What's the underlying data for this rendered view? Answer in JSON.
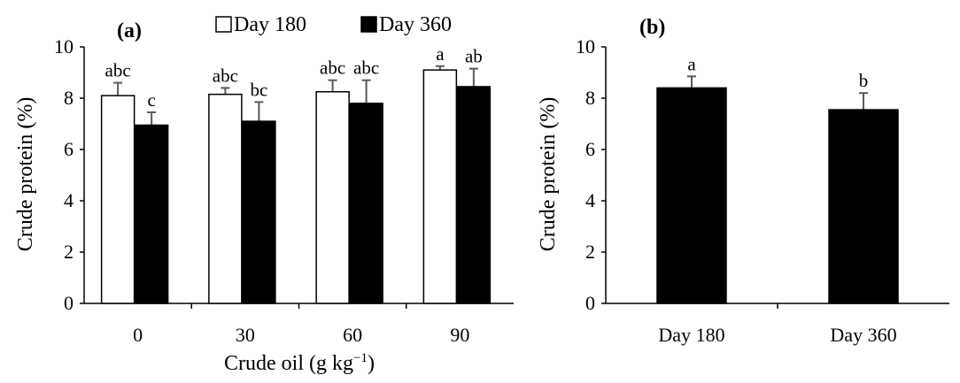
{
  "chart_data": [
    {
      "type": "bar",
      "panel_label": "(a)",
      "categories": [
        "0",
        "30",
        "60",
        "90"
      ],
      "series": [
        {
          "name": "Day 180",
          "color": "#ffffff",
          "values": [
            8.1,
            8.15,
            8.25,
            9.1
          ],
          "errors": [
            0.5,
            0.25,
            0.45,
            0.15
          ],
          "letters": [
            "abc",
            "abc",
            "abc",
            "a"
          ]
        },
        {
          "name": "Day 360",
          "color": "#000000",
          "values": [
            6.95,
            7.1,
            7.8,
            8.45
          ],
          "errors": [
            0.5,
            0.75,
            0.9,
            0.7
          ],
          "letters": [
            "c",
            "bc",
            "abc",
            "ab"
          ]
        }
      ],
      "legend": [
        "Day 180",
        "Day 360"
      ],
      "xlabel": "Crude oil (g kg",
      "xlabel_superscript": "−1",
      "xlabel_suffix": ")",
      "ylabel": "Crude protein (%)",
      "ylim": [
        0,
        10
      ],
      "yticks": [
        "0",
        "2",
        "4",
        "6",
        "8",
        "10"
      ]
    },
    {
      "type": "bar",
      "panel_label": "(b)",
      "categories": [
        "Day 180",
        "Day 360"
      ],
      "values": [
        8.4,
        7.55
      ],
      "errors": [
        0.45,
        0.65
      ],
      "letters": [
        "a",
        "b"
      ],
      "color": "#000000",
      "xlabel": "",
      "ylabel": "Crude protein (%)",
      "ylim": [
        0,
        10
      ],
      "yticks": [
        "0",
        "2",
        "4",
        "6",
        "8",
        "10"
      ]
    }
  ]
}
